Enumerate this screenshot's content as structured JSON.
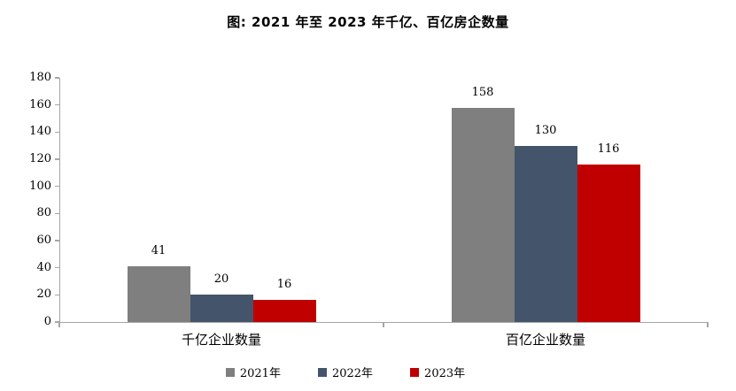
{
  "chart_data": {
    "type": "bar",
    "title": "图: 2021 年至 2023 年千亿、百亿房企数量",
    "categories": [
      "千亿企业数量",
      "百亿企业数量"
    ],
    "series": [
      {
        "name": "2021年",
        "values": [
          41,
          158
        ],
        "color": "#7F7F7F"
      },
      {
        "name": "2022年",
        "values": [
          20,
          130
        ],
        "color": "#44546A"
      },
      {
        "name": "2023年",
        "values": [
          16,
          116
        ],
        "color": "#C00000"
      }
    ],
    "ylim": [
      0,
      180
    ],
    "ytick_step": 20,
    "yticks": [
      0,
      20,
      40,
      60,
      80,
      100,
      120,
      140,
      160,
      180
    ],
    "grid": false,
    "data_labels": true,
    "legend_position": "bottom",
    "axis_color": "#A6A6A6",
    "text_color": "#000000",
    "background_color": "#FFFFFF"
  }
}
